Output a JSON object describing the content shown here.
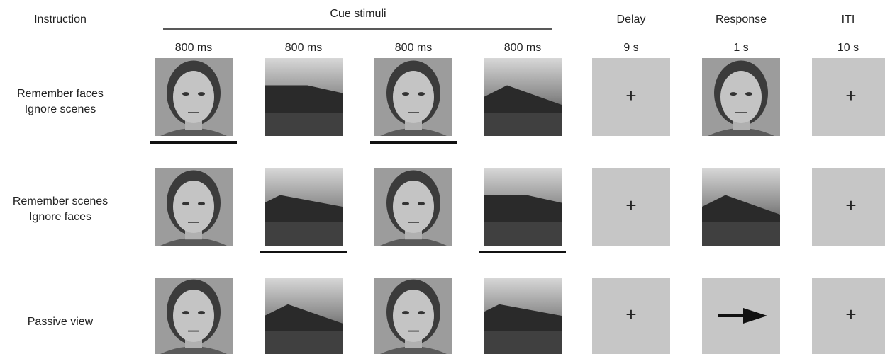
{
  "header": {
    "instruction": "Instruction",
    "cue_stimuli": "Cue stimuli",
    "cue_durations": [
      "800 ms",
      "800 ms",
      "800 ms",
      "800 ms"
    ],
    "delay": {
      "label": "Delay",
      "duration": "9 s"
    },
    "response": {
      "label": "Response",
      "duration": "1 s"
    },
    "iti": {
      "label": "ITI",
      "duration": "10 s"
    }
  },
  "rows": [
    {
      "instruction": [
        "Remember faces",
        "Ignore scenes"
      ]
    },
    {
      "instruction": [
        "Remember scenes",
        "Ignore faces"
      ]
    },
    {
      "instruction": [
        "Passive view"
      ]
    }
  ],
  "fixation": "+"
}
